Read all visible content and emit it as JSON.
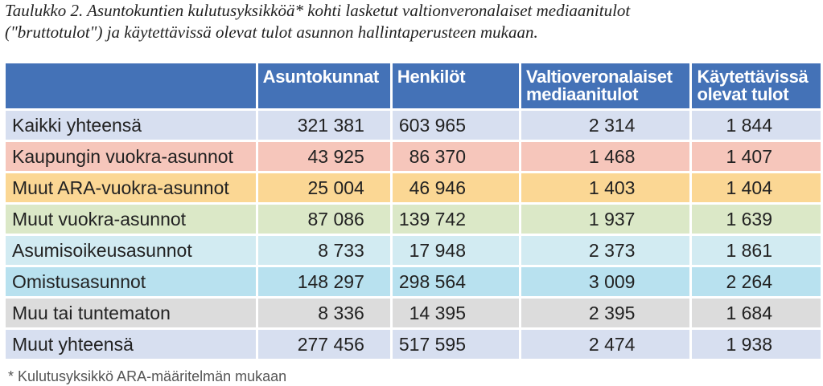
{
  "caption": {
    "line1": "Taulukko 2. Asuntokuntien kulutusyksikköä* kohti lasketut valtionveronalaiset mediaanitulot",
    "line2": "(\"bruttotulot\") ja käytettävissä olevat tulot asunnon hallintaperusteen mukaan."
  },
  "table": {
    "headers": [
      "",
      "Asuntokunnat",
      "Henkilöt",
      "Valtioveronalaiset mediaanitulot",
      "Käytettävissä olevat tulot"
    ],
    "rows": [
      {
        "label": "Kaikki yhteensä",
        "asuntokunnat": "321 381",
        "henkilot": "603 965",
        "mediaanitulot": "2 314",
        "kaytettavissa": "1 844",
        "color": "#d7dff0"
      },
      {
        "label": "Kaupungin vuokra-asunnot",
        "asuntokunnat": "43 925",
        "henkilot": "86 370",
        "mediaanitulot": "1 468",
        "kaytettavissa": "1 407",
        "color": "#f6c6bb"
      },
      {
        "label": "Muut ARA-vuokra-asunnot",
        "asuntokunnat": "25 004",
        "henkilot": "46 946",
        "mediaanitulot": "1 403",
        "kaytettavissa": "1 404",
        "color": "#fbd794"
      },
      {
        "label": "Muut vuokra-asunnot",
        "asuntokunnat": "87 086",
        "henkilot": "139 742",
        "mediaanitulot": "1 937",
        "kaytettavissa": "1 639",
        "color": "#dbe8c7"
      },
      {
        "label": "Asumisoikeusasunnot",
        "asuntokunnat": "8 733",
        "henkilot": "17 948",
        "mediaanitulot": "2 373",
        "kaytettavissa": "1 861",
        "color": "#d2ebf2"
      },
      {
        "label": "Omistusasunnot",
        "asuntokunnat": "148 297",
        "henkilot": "298 564",
        "mediaanitulot": "3 009",
        "kaytettavissa": "2 264",
        "color": "#b8e1ef"
      },
      {
        "label": "Muu tai tuntematon",
        "asuntokunnat": "8 336",
        "henkilot": "14 395",
        "mediaanitulot": "2 395",
        "kaytettavissa": "1 684",
        "color": "#dcdcdc"
      },
      {
        "label": "Muut yhteensä",
        "asuntokunnat": "277 456",
        "henkilot": "517 595",
        "mediaanitulot": "2 474",
        "kaytettavissa": "1 938",
        "color": "#d7dff0"
      }
    ]
  },
  "footnote": "*  Kulutusyksikkö ARA-määritelmän mukaan",
  "colors": {
    "header": "#4472b7"
  }
}
